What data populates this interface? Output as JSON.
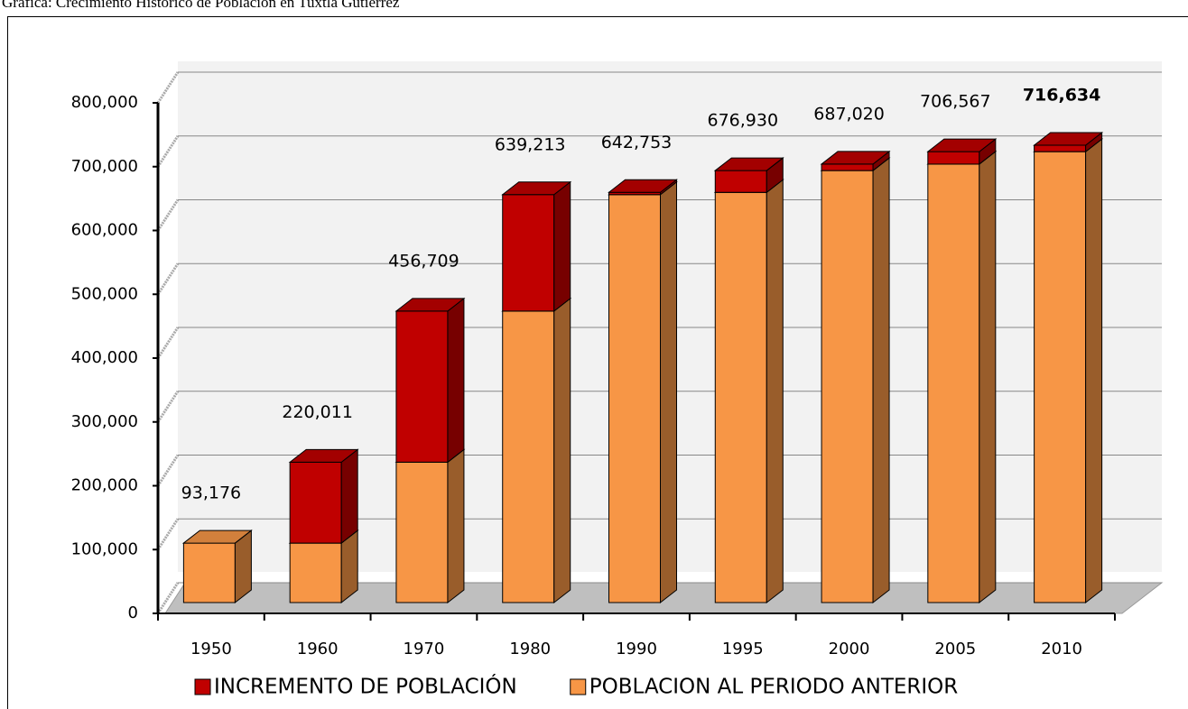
{
  "chart_data": {
    "type": "bar3d_stacked",
    "title": "Gráfica: Crecimiento Histórico de Población en Tuxtla Gutiérrez",
    "categories": [
      "1950",
      "1960",
      "1970",
      "1980",
      "1990",
      "1995",
      "2000",
      "2005",
      "2010"
    ],
    "series": [
      {
        "name": "POBLACION AL PERIODO ANTERIOR",
        "color": "#f79646",
        "values": [
          93176,
          93176,
          220011,
          456709,
          639213,
          642753,
          676930,
          687020,
          706567
        ]
      },
      {
        "name": "INCREMENTO DE POBLACIÓN",
        "color": "#c00000",
        "values": [
          null,
          126835,
          236698,
          182504,
          3540,
          34177,
          10090,
          19547,
          10067
        ]
      }
    ],
    "totals": [
      93176,
      220011,
      456709,
      639213,
      642753,
      676930,
      687020,
      706567,
      716634
    ],
    "total_labels": [
      "93,176",
      "220,011",
      "456,709",
      "639,213",
      "642,753",
      "676,930",
      "687,020",
      "706,567",
      "716,634"
    ],
    "ylim": [
      0,
      800000
    ],
    "yticks": [
      0,
      {
        "value": 100000,
        "label": "100,000"
      },
      {
        "value": 200000,
        "label": "200,000"
      },
      {
        "value": 300000,
        "label": "300,000"
      },
      {
        "value": 400000,
        "label": "400,000"
      },
      {
        "value": 500000,
        "label": "500,000"
      },
      {
        "value": 600000,
        "label": "600,000"
      },
      {
        "value": 700000,
        "label": "700,000"
      },
      {
        "value": 800000,
        "label": "800,000"
      }
    ],
    "grid": true,
    "legend": "bottom"
  }
}
